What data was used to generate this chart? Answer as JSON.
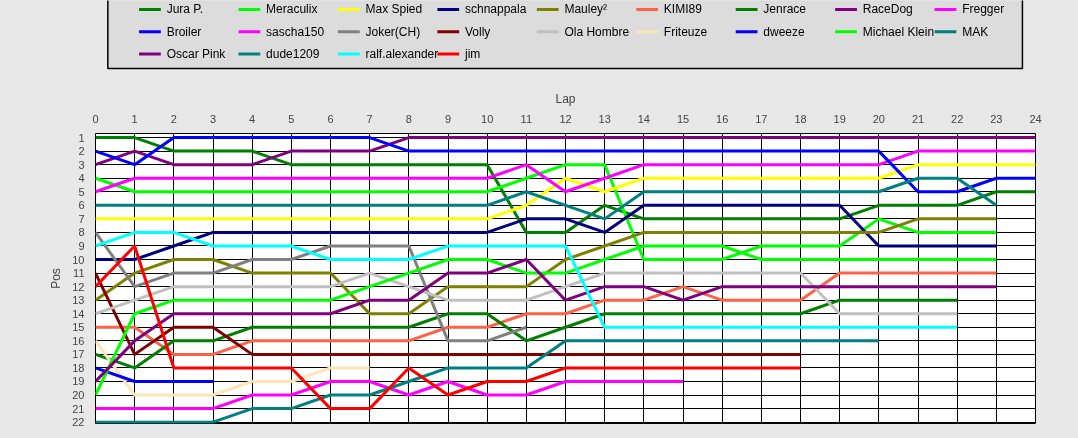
{
  "chart_data": {
    "type": "line",
    "xlabel": "Lap",
    "ylabel": "Pos",
    "x": [
      0,
      1,
      2,
      3,
      4,
      5,
      6,
      7,
      8,
      9,
      10,
      11,
      12,
      13,
      14,
      15,
      16,
      17,
      18,
      19,
      20,
      21,
      22,
      23,
      24
    ],
    "xlim": [
      0,
      24
    ],
    "xticks": [
      0,
      1,
      2,
      3,
      4,
      5,
      6,
      7,
      8,
      9,
      10,
      11,
      12,
      13,
      14,
      15,
      16,
      17,
      18,
      19,
      20,
      21,
      22,
      23,
      24
    ],
    "ylim": [
      22.1,
      0.7
    ],
    "yticks": [
      1,
      2,
      3,
      4,
      5,
      6,
      7,
      8,
      9,
      10,
      11,
      12,
      13,
      14,
      15,
      16,
      17,
      18,
      19,
      20,
      21,
      22
    ],
    "grid": true,
    "legend": "top",
    "marker": "none",
    "line_style": "solid",
    "series": [
      {
        "name": "Jura P.",
        "color": "#008000",
        "values": [
          1,
          1,
          2,
          2,
          2,
          3,
          3,
          3,
          3,
          3,
          3,
          8,
          8,
          6,
          7,
          7,
          7,
          7,
          7,
          7,
          6,
          6,
          6,
          5,
          5
        ]
      },
      {
        "name": "Meraculix",
        "color": "#00ff00",
        "values": [
          4,
          5,
          5,
          5,
          5,
          5,
          5,
          5,
          5,
          5,
          5,
          4,
          3,
          3,
          10,
          10,
          10,
          9,
          9,
          9,
          7,
          8,
          8,
          8,
          null
        ]
      },
      {
        "name": "Max Spied",
        "color": "#ffff00",
        "values": [
          7,
          7,
          7,
          7,
          7,
          7,
          7,
          7,
          7,
          7,
          7,
          6,
          4,
          5,
          4,
          4,
          4,
          4,
          4,
          4,
          4,
          3,
          3,
          3,
          3
        ]
      },
      {
        "name": "schnappala",
        "color": "#000080",
        "values": [
          10,
          10,
          9,
          8,
          8,
          8,
          8,
          8,
          8,
          8,
          8,
          7,
          7,
          8,
          6,
          6,
          6,
          6,
          6,
          6,
          9,
          9,
          9,
          9,
          null
        ]
      },
      {
        "name": "Mauley²",
        "color": "#808000",
        "values": [
          13,
          11,
          10,
          10,
          11,
          11,
          11,
          14,
          14,
          12,
          12,
          12,
          10,
          9,
          8,
          8,
          8,
          8,
          8,
          8,
          8,
          7,
          7,
          7,
          null
        ]
      },
      {
        "name": "KIMI89",
        "color": "#ff6347",
        "values": [
          15,
          15,
          17,
          17,
          16,
          16,
          16,
          16,
          16,
          15,
          15,
          14,
          14,
          13,
          13,
          12,
          13,
          13,
          13,
          11,
          11,
          11,
          11,
          11,
          null
        ]
      },
      {
        "name": "Jenrace",
        "color": "#008000",
        "values": [
          17,
          18,
          16,
          16,
          15,
          15,
          15,
          15,
          15,
          14,
          14,
          16,
          15,
          14,
          14,
          14,
          14,
          14,
          14,
          13,
          13,
          13,
          13,
          null,
          null
        ]
      },
      {
        "name": "RaceDog",
        "color": "#800080",
        "values": [
          3,
          2,
          3,
          3,
          3,
          2,
          2,
          2,
          1,
          1,
          1,
          1,
          1,
          1,
          1,
          1,
          1,
          1,
          1,
          1,
          1,
          1,
          1,
          1,
          1
        ]
      },
      {
        "name": "Fregger",
        "color": "#ff00ff",
        "values": [
          5,
          4,
          4,
          4,
          4,
          4,
          4,
          4,
          4,
          4,
          4,
          3,
          5,
          4,
          3,
          3,
          3,
          3,
          3,
          3,
          3,
          2,
          2,
          2,
          2
        ]
      },
      {
        "name": "Broiler",
        "color": "#0000ff",
        "values": [
          2,
          3,
          1,
          1,
          1,
          1,
          1,
          1,
          2,
          2,
          2,
          2,
          2,
          2,
          2,
          2,
          2,
          2,
          2,
          2,
          2,
          5,
          5,
          4,
          4
        ]
      },
      {
        "name": "sascha150",
        "color": "#ff00ff",
        "values": [
          21,
          21,
          21,
          21,
          20,
          20,
          19,
          19,
          20,
          19,
          20,
          20,
          19,
          19,
          19,
          19,
          null,
          null,
          null,
          null,
          null,
          null,
          null,
          null,
          null
        ]
      },
      {
        "name": "Joker(CH)",
        "color": "#808080",
        "values": [
          8,
          12,
          11,
          11,
          10,
          10,
          9,
          9,
          9,
          16,
          16,
          15,
          null,
          null,
          null,
          null,
          null,
          null,
          null,
          null,
          null,
          null,
          null,
          null,
          null
        ]
      },
      {
        "name": "Volly",
        "color": "#800000",
        "values": [
          11,
          17,
          15,
          15,
          17,
          17,
          17,
          17,
          17,
          17,
          17,
          17,
          17,
          17,
          17,
          17,
          17,
          17,
          17,
          null,
          null,
          null,
          null,
          null,
          null
        ]
      },
      {
        "name": "Ola Hombre",
        "color": "#c0c0c0",
        "values": [
          14,
          13,
          12,
          12,
          12,
          12,
          12,
          11,
          12,
          13,
          13,
          13,
          12,
          11,
          11,
          11,
          11,
          11,
          11,
          14,
          14,
          14,
          14,
          null,
          null
        ]
      },
      {
        "name": "Friteuze",
        "color": "#ffe4b5",
        "values": [
          16,
          20,
          20,
          20,
          19,
          19,
          18,
          18,
          null,
          null,
          null,
          null,
          null,
          null,
          null,
          null,
          null,
          null,
          null,
          null,
          null,
          null,
          null,
          null,
          null
        ]
      },
      {
        "name": "dweeze",
        "color": "#0000ff",
        "values": [
          18,
          19,
          19,
          19,
          null,
          null,
          null,
          null,
          null,
          null,
          null,
          null,
          null,
          null,
          null,
          null,
          null,
          null,
          null,
          null,
          null,
          null,
          null,
          null,
          null
        ]
      },
      {
        "name": "Michael Klein",
        "color": "#00ff00",
        "values": [
          20,
          14,
          13,
          13,
          13,
          13,
          13,
          12,
          11,
          10,
          10,
          11,
          11,
          10,
          9,
          9,
          9,
          10,
          10,
          10,
          10,
          10,
          10,
          10,
          null
        ]
      },
      {
        "name": "MAK",
        "color": "#008080",
        "values": [
          6,
          6,
          6,
          6,
          6,
          6,
          6,
          6,
          6,
          6,
          6,
          5,
          6,
          7,
          5,
          5,
          5,
          5,
          5,
          5,
          5,
          4,
          4,
          6,
          null
        ]
      },
      {
        "name": "Oscar Pink",
        "color": "#800080",
        "values": [
          19,
          16,
          14,
          14,
          14,
          14,
          14,
          13,
          13,
          11,
          11,
          10,
          13,
          12,
          12,
          13,
          12,
          12,
          12,
          12,
          12,
          12,
          12,
          12,
          null
        ]
      },
      {
        "name": "dude1209",
        "color": "#008080",
        "values": [
          22,
          22,
          22,
          22,
          21,
          21,
          20,
          20,
          19,
          18,
          18,
          18,
          16,
          16,
          16,
          16,
          16,
          16,
          16,
          16,
          16,
          null,
          null,
          null,
          null
        ]
      },
      {
        "name": "ralf.alexander",
        "color": "#00ffff",
        "values": [
          9,
          8,
          8,
          9,
          9,
          9,
          10,
          10,
          10,
          9,
          9,
          9,
          9,
          15,
          15,
          15,
          15,
          15,
          15,
          15,
          15,
          15,
          15,
          null,
          null
        ]
      },
      {
        "name": "jim",
        "color": "#ff0000",
        "values": [
          12,
          9,
          18,
          18,
          18,
          18,
          21,
          21,
          18,
          20,
          19,
          19,
          18,
          18,
          18,
          18,
          18,
          18,
          18,
          null,
          null,
          null,
          null,
          null,
          null
        ]
      }
    ]
  }
}
